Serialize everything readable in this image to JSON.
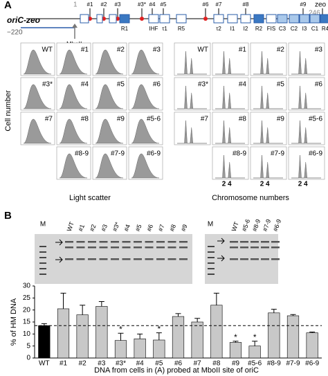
{
  "panel_a": {
    "label": "A",
    "construct": {
      "name": "oriC-zeo",
      "start": "1",
      "end": "246",
      "left": "−220",
      "zeo": "zeo",
      "site": "MboII",
      "mutations": [
        "#1",
        "#2",
        "#3",
        "#3*",
        "#4",
        "#5",
        "#6",
        "#7",
        "#8",
        "#9"
      ],
      "boxes": [
        "R1",
        "IHF",
        "τ1",
        "R5",
        "τ2",
        "I1",
        "I2",
        "R2",
        "FIS",
        "C3",
        "C2",
        "I3",
        "C1",
        "R4"
      ]
    },
    "light_scatter": {
      "y_label": "Cell number",
      "x_label": "Light scatter",
      "samples": [
        "WT",
        "#1",
        "#2",
        "#3",
        "#3*",
        "#4",
        "#5",
        "#6",
        "#7",
        "#8",
        "#9",
        "#5-6",
        "#8-9",
        "#7-9",
        "#6-9"
      ]
    },
    "chromosome": {
      "x_label": "Chromosome numbers",
      "ticks": [
        "2",
        "4"
      ],
      "samples": [
        "WT",
        "#1",
        "#2",
        "#3",
        "#3*",
        "#4",
        "#5",
        "#6",
        "#7",
        "#8",
        "#9",
        "#5-6",
        "#8-9",
        "#7-9",
        "#6-9"
      ]
    }
  },
  "panel_b": {
    "label": "B",
    "gel_left": {
      "marker": "M",
      "lanes": [
        "WT",
        "#1",
        "#2",
        "#3",
        "#3*",
        "#4",
        "#5",
        "#6",
        "#7",
        "#8",
        "#9"
      ]
    },
    "gel_right": {
      "marker": "M",
      "lanes": [
        "WT",
        "#5-6",
        "#8-9",
        "#7-9",
        "#6-9"
      ]
    }
  },
  "chart_data": {
    "type": "bar",
    "y_label": "% of HM DNA",
    "x_label": "DNA from cells in (A) probed at MboII site of oriC",
    "categories": [
      "WT",
      "#1",
      "#2",
      "#3",
      "#3*",
      "#4",
      "#5",
      "#6",
      "#7",
      "#8",
      "#9",
      "#5-6",
      "#8-9",
      "#7-9",
      "#6-9"
    ],
    "values": [
      13.5,
      20.5,
      18,
      21.5,
      7.3,
      8,
      7.5,
      17.3,
      15,
      22,
      6.5,
      5,
      18.8,
      17.6,
      10.5
    ],
    "errors": [
      0.8,
      6.5,
      4,
      2,
      3,
      2,
      3,
      1.2,
      1.5,
      5,
      0.5,
      2,
      1.5,
      0.5,
      0.3
    ],
    "significance": [
      null,
      null,
      null,
      null,
      "*",
      null,
      "*",
      null,
      null,
      null,
      "*",
      "*",
      null,
      null,
      null
    ],
    "colors": [
      "#000000",
      "#c8c8c8",
      "#c8c8c8",
      "#c8c8c8",
      "#c8c8c8",
      "#c8c8c8",
      "#c8c8c8",
      "#c8c8c8",
      "#c8c8c8",
      "#c8c8c8",
      "#c8c8c8",
      "#c8c8c8",
      "#c8c8c8",
      "#c8c8c8",
      "#c8c8c8"
    ],
    "reference_line": 13.5,
    "ylim": [
      0,
      30
    ],
    "yticks": [
      0,
      5,
      10,
      15,
      20,
      25,
      30
    ]
  }
}
